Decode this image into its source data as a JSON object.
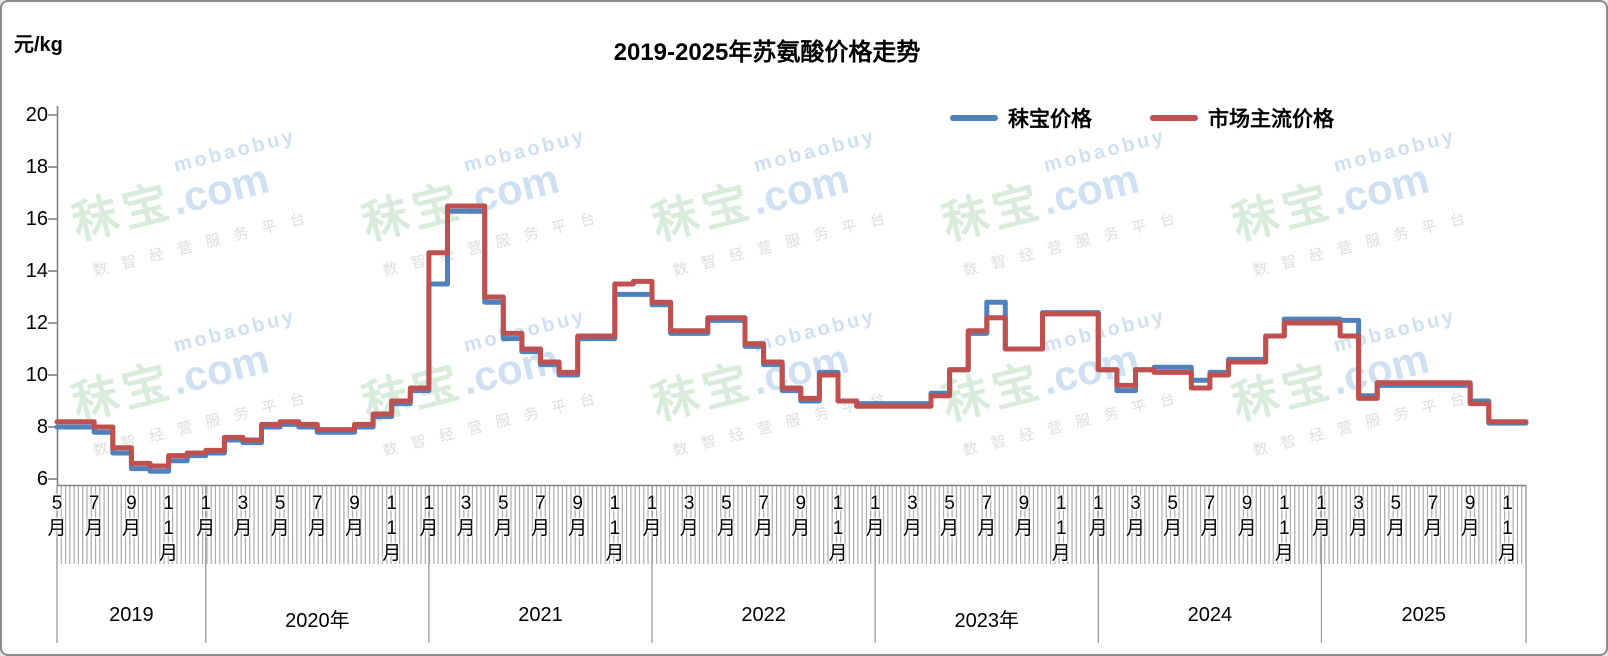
{
  "title": "2019-2025年苏氨酸价格走势",
  "y_axis": {
    "unit": "元/kg",
    "ticks": [
      20,
      18,
      16,
      14,
      12,
      10,
      8,
      6
    ],
    "min": 6,
    "max": 20
  },
  "legend": [
    {
      "name": "秣宝价格",
      "color": "#4F81BD"
    },
    {
      "name": "市场主流价格",
      "color": "#C0504D"
    }
  ],
  "x_axis": {
    "month_tick_labels": [
      "5月",
      "7月",
      "9月",
      "11月",
      "1月",
      "3月",
      "5月",
      "7月",
      "9月",
      "11月",
      "1月",
      "3月",
      "5月",
      "7月",
      "9月",
      "11月",
      "1月",
      "3月",
      "5月",
      "7月",
      "9月",
      "11月",
      "1月",
      "3月",
      "5月",
      "7月",
      "9月",
      "11月",
      "1月",
      "3月",
      "5月",
      "7月",
      "9月",
      "11月",
      "1月",
      "3月",
      "5月",
      "7月",
      "9月",
      "11月"
    ],
    "years": [
      {
        "label": "2019",
        "start": 0,
        "end": 8
      },
      {
        "label": "2020年",
        "start": 8,
        "end": 20
      },
      {
        "label": "2021",
        "start": 20,
        "end": 32
      },
      {
        "label": "2022",
        "start": 32,
        "end": 44
      },
      {
        "label": "2023年",
        "start": 44,
        "end": 56
      },
      {
        "label": "2024",
        "start": 56,
        "end": 68
      },
      {
        "label": "2025",
        "start": 68,
        "end": 79
      }
    ]
  },
  "watermark": {
    "brand": "秣宝",
    "dotcom": ".com",
    "latin": "mobaobuy",
    "slogan": "数智经营服务平台"
  },
  "colors": {
    "mabao_line": "#4F81BD",
    "market_line": "#C0504D",
    "axis": "#808080",
    "tick_stripes": "#ababab",
    "year_separator": "#9b9b9b"
  },
  "chart_data": {
    "type": "line",
    "line_style": "step",
    "interval": "monthly (estimated from weekly step chart)",
    "title": "2019-2025年苏氨酸价格走势",
    "ylabel": "元/kg",
    "ylim": [
      6,
      20
    ],
    "grid": false,
    "legend_position": "top-right",
    "x": [
      "2019-05",
      "2019-06",
      "2019-07",
      "2019-08",
      "2019-09",
      "2019-10",
      "2019-11",
      "2019-12",
      "2020-01",
      "2020-02",
      "2020-03",
      "2020-04",
      "2020-05",
      "2020-06",
      "2020-07",
      "2020-08",
      "2020-09",
      "2020-10",
      "2020-11",
      "2020-12",
      "2021-01",
      "2021-02",
      "2021-03",
      "2021-04",
      "2021-05",
      "2021-06",
      "2021-07",
      "2021-08",
      "2021-09",
      "2021-10",
      "2021-11",
      "2021-12",
      "2022-01",
      "2022-02",
      "2022-03",
      "2022-04",
      "2022-05",
      "2022-06",
      "2022-07",
      "2022-08",
      "2022-09",
      "2022-10",
      "2022-11",
      "2022-12",
      "2023-01",
      "2023-02",
      "2023-03",
      "2023-04",
      "2023-05",
      "2023-06",
      "2023-07",
      "2023-08",
      "2023-09",
      "2023-10",
      "2023-11",
      "2023-12",
      "2024-01",
      "2024-02",
      "2024-03",
      "2024-04",
      "2024-05",
      "2024-06",
      "2024-07",
      "2024-08",
      "2024-09",
      "2024-10",
      "2024-11",
      "2024-12",
      "2025-01",
      "2025-02",
      "2025-03",
      "2025-04",
      "2025-05",
      "2025-06",
      "2025-07",
      "2025-08",
      "2025-09",
      "2025-10",
      "2025-11"
    ],
    "series": [
      {
        "name": "秣宝价格",
        "color": "#4F81BD",
        "values": [
          8.0,
          8.0,
          7.8,
          7.0,
          6.4,
          6.3,
          6.7,
          6.9,
          7.0,
          7.5,
          7.4,
          8.0,
          8.1,
          8.0,
          7.8,
          7.8,
          8.0,
          8.4,
          8.9,
          9.4,
          13.5,
          16.3,
          16.3,
          12.8,
          11.4,
          10.9,
          10.4,
          10.0,
          11.4,
          11.4,
          13.1,
          13.1,
          12.7,
          11.6,
          11.6,
          12.1,
          12.1,
          11.1,
          10.4,
          9.4,
          9.0,
          10.1,
          9.0,
          8.9,
          8.9,
          8.9,
          8.9,
          9.3,
          10.2,
          11.6,
          12.8,
          11.0,
          11.0,
          12.4,
          12.4,
          12.4,
          10.2,
          9.4,
          10.2,
          10.3,
          10.3,
          9.8,
          10.1,
          10.6,
          10.6,
          11.5,
          12.15,
          12.15,
          12.15,
          12.1,
          9.2,
          9.6,
          9.6,
          9.6,
          9.6,
          9.6,
          9.0,
          8.15,
          8.15
        ]
      },
      {
        "name": "市场主流价格",
        "color": "#C0504D",
        "values": [
          8.2,
          8.2,
          8.0,
          7.2,
          6.6,
          6.5,
          6.9,
          7.0,
          7.1,
          7.6,
          7.5,
          8.1,
          8.2,
          8.1,
          7.9,
          7.9,
          8.1,
          8.5,
          9.0,
          9.5,
          14.7,
          16.5,
          16.5,
          13.0,
          11.6,
          11.0,
          10.5,
          10.1,
          11.5,
          11.5,
          13.5,
          13.6,
          12.8,
          11.7,
          11.7,
          12.2,
          12.2,
          11.2,
          10.5,
          9.5,
          9.1,
          10.0,
          9.0,
          8.8,
          8.8,
          8.8,
          8.8,
          9.2,
          10.2,
          11.7,
          12.2,
          11.0,
          11.0,
          12.35,
          12.35,
          12.35,
          10.2,
          9.6,
          10.2,
          10.1,
          10.1,
          9.5,
          10.0,
          10.5,
          10.5,
          11.5,
          12.0,
          12.0,
          12.0,
          11.5,
          9.1,
          9.7,
          9.7,
          9.7,
          9.7,
          9.7,
          8.9,
          8.2,
          8.2
        ]
      }
    ]
  }
}
